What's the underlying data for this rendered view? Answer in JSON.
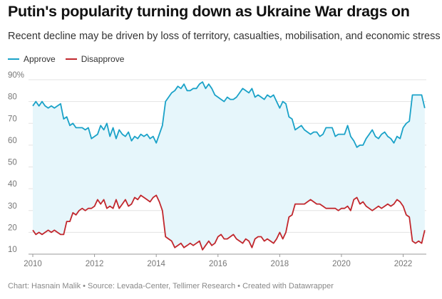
{
  "title": "Putin's popularity turning down as Ukraine War drags on",
  "subtitle": "Recent decline may be driven by loss of territory, casualties, mobilisation, and economic stress",
  "footer": "Chart: Hasnain Malik • Source: Levada-Center, Tellimer Research • Created with Datawrapper",
  "colors": {
    "approve": "#1aa2c8",
    "disapprove": "#c1272d",
    "fill": "#e6f6fb",
    "grid": "#e3e3e3"
  },
  "chart_data": {
    "type": "line",
    "title": "Putin's popularity turning down as Ukraine War drags on",
    "xlabel": "",
    "ylabel": "",
    "xlim": [
      2010,
      2022.75
    ],
    "ylim": [
      10,
      90
    ],
    "y_ticks": [
      10,
      20,
      30,
      40,
      50,
      60,
      70,
      80,
      90
    ],
    "y_tick_labels": [
      "10",
      "20",
      "30",
      "40",
      "50",
      "60",
      "70",
      "80",
      "90%"
    ],
    "x_ticks": [
      2010,
      2012,
      2014,
      2016,
      2018,
      2020,
      2022
    ],
    "x_tick_labels": [
      "2010",
      "2012",
      "2014",
      "2016",
      "2018",
      "2020",
      "2022"
    ],
    "legend": [
      "Approve",
      "Disapprove"
    ],
    "series": [
      {
        "name": "Approve",
        "x": [
          2010.0,
          2010.1,
          2010.2,
          2010.3,
          2010.4,
          2010.5,
          2010.6,
          2010.7,
          2010.8,
          2010.9,
          2011.0,
          2011.1,
          2011.2,
          2011.3,
          2011.4,
          2011.5,
          2011.6,
          2011.7,
          2011.8,
          2011.9,
          2012.0,
          2012.1,
          2012.2,
          2012.3,
          2012.4,
          2012.5,
          2012.6,
          2012.7,
          2012.8,
          2012.9,
          2013.0,
          2013.1,
          2013.2,
          2013.3,
          2013.4,
          2013.5,
          2013.6,
          2013.7,
          2013.8,
          2013.9,
          2014.0,
          2014.1,
          2014.2,
          2014.3,
          2014.4,
          2014.5,
          2014.6,
          2014.7,
          2014.8,
          2014.9,
          2015.0,
          2015.1,
          2015.2,
          2015.3,
          2015.4,
          2015.5,
          2015.6,
          2015.7,
          2015.8,
          2015.9,
          2016.0,
          2016.1,
          2016.2,
          2016.3,
          2016.4,
          2016.5,
          2016.6,
          2016.7,
          2016.8,
          2016.9,
          2017.0,
          2017.1,
          2017.2,
          2017.3,
          2017.4,
          2017.5,
          2017.6,
          2017.7,
          2017.8,
          2017.9,
          2018.0,
          2018.1,
          2018.2,
          2018.3,
          2018.4,
          2018.5,
          2018.6,
          2018.7,
          2018.8,
          2018.9,
          2019.0,
          2019.1,
          2019.2,
          2019.3,
          2019.4,
          2019.5,
          2019.6,
          2019.7,
          2019.8,
          2019.9,
          2020.0,
          2020.1,
          2020.2,
          2020.3,
          2020.4,
          2020.5,
          2020.6,
          2020.7,
          2020.8,
          2020.9,
          2021.0,
          2021.1,
          2021.2,
          2021.3,
          2021.4,
          2021.5,
          2021.6,
          2021.7,
          2021.8,
          2021.9,
          2022.0,
          2022.1,
          2022.2,
          2022.3,
          2022.4,
          2022.5,
          2022.6,
          2022.7
        ],
        "values": [
          78,
          80,
          78,
          80,
          78,
          77,
          78,
          77,
          78,
          79,
          72,
          73,
          69,
          70,
          68,
          68,
          68,
          67,
          68,
          63,
          64,
          65,
          69,
          67,
          70,
          64,
          68,
          63,
          67,
          65,
          64,
          66,
          62,
          64,
          63,
          65,
          64,
          65,
          63,
          64,
          61,
          65,
          69,
          80,
          82,
          84,
          85,
          87,
          86,
          88,
          85,
          85,
          86,
          86,
          88,
          89,
          86,
          88,
          86,
          83,
          82,
          81,
          80,
          82,
          81,
          81,
          82,
          84,
          86,
          85,
          84,
          86,
          82,
          83,
          82,
          81,
          83,
          82,
          83,
          80,
          77,
          80,
          79,
          73,
          72,
          67,
          68,
          69,
          67,
          66,
          65,
          66,
          66,
          64,
          65,
          68,
          68,
          68,
          64,
          65,
          65,
          65,
          69,
          64,
          62,
          59,
          60,
          60,
          63,
          65,
          67,
          64,
          63,
          65,
          66,
          64,
          63,
          61,
          64,
          63,
          68,
          70,
          71,
          83,
          83,
          83,
          83,
          77
        ]
      },
      {
        "name": "Disapprove",
        "x": [
          2010.0,
          2010.1,
          2010.2,
          2010.3,
          2010.4,
          2010.5,
          2010.6,
          2010.7,
          2010.8,
          2010.9,
          2011.0,
          2011.1,
          2011.2,
          2011.3,
          2011.4,
          2011.5,
          2011.6,
          2011.7,
          2011.8,
          2011.9,
          2012.0,
          2012.1,
          2012.2,
          2012.3,
          2012.4,
          2012.5,
          2012.6,
          2012.7,
          2012.8,
          2012.9,
          2013.0,
          2013.1,
          2013.2,
          2013.3,
          2013.4,
          2013.5,
          2013.6,
          2013.7,
          2013.8,
          2013.9,
          2014.0,
          2014.1,
          2014.2,
          2014.3,
          2014.4,
          2014.5,
          2014.6,
          2014.7,
          2014.8,
          2014.9,
          2015.0,
          2015.1,
          2015.2,
          2015.3,
          2015.4,
          2015.5,
          2015.6,
          2015.7,
          2015.8,
          2015.9,
          2016.0,
          2016.1,
          2016.2,
          2016.3,
          2016.4,
          2016.5,
          2016.6,
          2016.7,
          2016.8,
          2016.9,
          2017.0,
          2017.1,
          2017.2,
          2017.3,
          2017.4,
          2017.5,
          2017.6,
          2017.7,
          2017.8,
          2017.9,
          2018.0,
          2018.1,
          2018.2,
          2018.3,
          2018.4,
          2018.5,
          2018.6,
          2018.7,
          2018.8,
          2018.9,
          2019.0,
          2019.1,
          2019.2,
          2019.3,
          2019.4,
          2019.5,
          2019.6,
          2019.7,
          2019.8,
          2019.9,
          2020.0,
          2020.1,
          2020.2,
          2020.3,
          2020.4,
          2020.5,
          2020.6,
          2020.7,
          2020.8,
          2020.9,
          2021.0,
          2021.1,
          2021.2,
          2021.3,
          2021.4,
          2021.5,
          2021.6,
          2021.7,
          2021.8,
          2021.9,
          2022.0,
          2022.1,
          2022.2,
          2022.3,
          2022.4,
          2022.5,
          2022.6,
          2022.7
        ],
        "values": [
          21,
          19,
          20,
          19,
          20,
          21,
          20,
          21,
          20,
          19,
          19,
          25,
          25,
          29,
          28,
          30,
          31,
          30,
          31,
          31,
          32,
          35,
          33,
          35,
          31,
          32,
          31,
          35,
          31,
          33,
          35,
          32,
          33,
          36,
          35,
          37,
          36,
          35,
          34,
          36,
          37,
          34,
          30,
          18,
          17,
          16,
          13,
          14,
          15,
          13,
          14,
          15,
          14,
          15,
          16,
          12,
          14,
          16,
          14,
          15,
          18,
          19,
          17,
          17,
          18,
          19,
          17,
          16,
          15,
          17,
          16,
          13,
          17,
          18,
          18,
          16,
          17,
          16,
          15,
          17,
          20,
          17,
          20,
          27,
          28,
          33,
          33,
          33,
          33,
          34,
          35,
          34,
          33,
          33,
          32,
          31,
          31,
          31,
          31,
          30,
          31,
          31,
          32,
          30,
          35,
          36,
          33,
          34,
          32,
          31,
          30,
          31,
          32,
          31,
          32,
          33,
          32,
          33,
          35,
          34,
          32,
          28,
          27,
          16,
          15,
          16,
          15,
          21
        ]
      }
    ]
  }
}
